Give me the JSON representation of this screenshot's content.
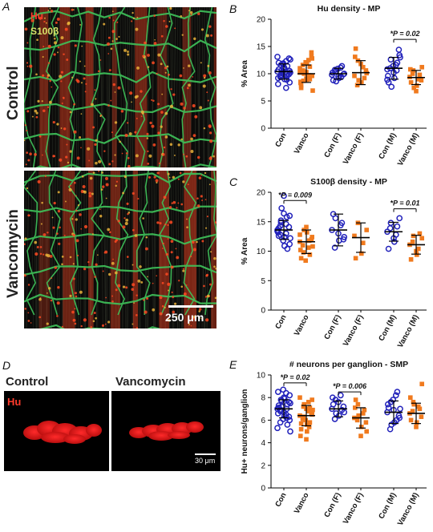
{
  "panels": {
    "A": {
      "letter": "A",
      "labels": {
        "hu": "Hu",
        "s100b": "S100β"
      },
      "rows": [
        "Control",
        "Vancomycin"
      ],
      "scale": "250 μm"
    },
    "D": {
      "letter": "D",
      "titles": [
        "Control",
        "Vancomycin"
      ],
      "label": "Hu",
      "scale": "30 μm"
    }
  },
  "colors": {
    "con": "#2222bb",
    "vanco": "#f07a1e"
  },
  "chart_data": [
    {
      "letter": "B",
      "type": "scatter",
      "title": "Hu density - MP",
      "ylabel": "% Area",
      "ylim": [
        0,
        20
      ],
      "yticks": [
        0,
        5,
        10,
        15,
        20
      ],
      "categories": [
        "Con",
        "Vanco",
        "Con (F)",
        "Vanco (F)",
        "Con (M)",
        "Vanco (M)"
      ],
      "means": [
        10.4,
        10.0,
        10.0,
        10.2,
        11.0,
        9.3
      ],
      "sd": [
        1.4,
        1.6,
        1.0,
        2.2,
        2.0,
        1.3
      ],
      "points": [
        [
          10.4,
          11.6,
          9.0,
          12.3,
          8.4,
          10.8,
          9.6,
          11.2,
          10.0,
          12.8,
          9.2,
          10.6,
          11.9,
          8.9,
          10.2,
          13.1,
          9.8,
          11.0,
          7.4,
          10.5,
          12.0,
          9.4,
          10.9,
          11.4,
          9.9,
          8.1,
          10.1,
          11.7,
          9.5,
          12.6
        ],
        [
          10.2,
          8.7,
          11.9,
          9.4,
          12.8,
          7.8,
          10.6,
          9.1,
          11.3,
          13.9,
          8.3,
          10.0,
          12.1,
          9.7,
          6.9,
          11.0,
          10.4,
          8.9,
          12.5,
          9.6,
          7.4,
          11.6,
          10.3,
          9.0,
          13.2,
          8.5
        ],
        [
          9.8,
          10.4,
          9.2,
          11.1,
          10.0,
          8.8,
          10.7,
          9.5,
          11.4,
          9.9,
          10.2,
          8.6,
          10.9,
          9.4
        ],
        [
          9.6,
          12.4,
          8.4,
          11.2,
          10.1,
          14.6,
          7.9,
          11.8,
          9.2,
          10.6,
          13.1,
          8.8
        ],
        [
          10.8,
          12.6,
          9.2,
          11.6,
          13.4,
          8.4,
          11.0,
          10.2,
          12.0,
          14.4,
          9.6,
          7.6,
          11.4,
          10.6,
          13.0,
          8.9
        ],
        [
          9.4,
          10.6,
          7.8,
          9.0,
          11.2,
          8.4,
          10.0,
          6.8,
          9.8,
          8.8,
          10.8,
          7.4
        ]
      ],
      "sig": [
        {
          "from": 4,
          "to": 5,
          "label": "*P = 0.02",
          "y": 16.3
        }
      ]
    },
    {
      "letter": "C",
      "type": "scatter",
      "title": "S100β density - MP",
      "ylabel": "% Area",
      "ylim": [
        0,
        20
      ],
      "yticks": [
        0,
        5,
        10,
        15,
        20
      ],
      "categories": [
        "Con",
        "Vanco",
        "Con (F)",
        "Vanco (F)",
        "Con (M)",
        "Vanco (M)"
      ],
      "means": [
        13.6,
        11.6,
        13.6,
        12.3,
        13.3,
        11.1
      ],
      "sd": [
        1.6,
        2.0,
        2.7,
        2.5,
        1.6,
        1.6
      ],
      "points": [
        [
          13.6,
          15.2,
          12.4,
          14.6,
          11.2,
          13.9,
          12.8,
          16.4,
          10.4,
          14.1,
          13.2,
          17.3,
          11.8,
          15.8,
          12.2,
          13.4,
          14.9,
          10.9,
          13.0,
          16.0,
          12.6,
          14.3,
          19.4
        ],
        [
          11.6,
          9.8,
          13.2,
          10.6,
          12.4,
          8.8,
          11.0,
          14.1,
          9.4,
          12.0,
          10.2,
          13.6,
          8.4,
          11.8,
          10.8,
          12.8
        ],
        [
          13.6,
          15.6,
          11.8,
          14.4,
          12.4,
          16.3,
          10.6,
          13.0,
          14.8,
          12.0
        ],
        [
          12.6,
          14.8,
          9.6,
          11.4,
          13.6,
          8.8
        ],
        [
          13.3,
          14.8,
          11.6,
          12.8,
          15.6,
          10.4,
          13.9,
          12.2,
          14.2
        ],
        [
          11.1,
          12.6,
          9.4,
          10.4,
          12.2,
          8.6,
          11.6,
          10.0,
          13.0
        ]
      ],
      "sig": [
        {
          "from": 0,
          "to": 1,
          "label": "*P = 0.009",
          "y": 18.6
        },
        {
          "from": 4,
          "to": 5,
          "label": "*P = 0.01",
          "y": 17.2
        }
      ]
    },
    {
      "letter": "E",
      "type": "scatter",
      "title": "# neurons per ganglion - SMP",
      "ylabel": "Hu+ neurons/ganglion",
      "ylim": [
        0,
        10
      ],
      "yticks": [
        0,
        2,
        4,
        6,
        8,
        10
      ],
      "categories": [
        "Con",
        "Vanco",
        "Con (F)",
        "Vanco (F)",
        "Con (M)",
        "Vanco (M)"
      ],
      "means": [
        7.0,
        6.4,
        7.0,
        6.2,
        6.7,
        6.6
      ],
      "sd": [
        0.8,
        0.9,
        0.7,
        0.9,
        1.0,
        0.9
      ],
      "points": [
        [
          7.0,
          7.8,
          6.4,
          8.4,
          6.0,
          7.3,
          6.8,
          8.0,
          5.6,
          7.6,
          6.6,
          7.2,
          8.7,
          6.2,
          7.5,
          5.3,
          6.9,
          7.9,
          6.5,
          8.2,
          7.1,
          5.8,
          6.7,
          7.4,
          6.3,
          8.5,
          7.7,
          6.1,
          7.0,
          5.0
        ],
        [
          6.4,
          7.2,
          5.6,
          6.8,
          7.8,
          5.2,
          6.2,
          7.0,
          5.8,
          6.6,
          4.6,
          7.4,
          6.0,
          5.4,
          6.9,
          8.0,
          6.3,
          5.0,
          7.6,
          6.5,
          5.7,
          6.1,
          4.3,
          7.1,
          6.7
        ],
        [
          7.0,
          7.8,
          6.4,
          8.2,
          6.7,
          7.4,
          6.1,
          7.6,
          6.9,
          7.2,
          8.0,
          6.6
        ],
        [
          6.2,
          7.4,
          5.4,
          6.6,
          5.0,
          7.8,
          6.0,
          4.6,
          6.9,
          5.8,
          7.1,
          6.4
        ],
        [
          6.7,
          7.6,
          5.8,
          8.2,
          6.2,
          7.1,
          5.2,
          6.9,
          8.5,
          6.4,
          7.4,
          5.6,
          7.8,
          6.0,
          7.0
        ],
        [
          6.6,
          7.6,
          5.8,
          7.2,
          9.2,
          6.0,
          6.8,
          5.4,
          7.0,
          6.3,
          8.0,
          7.4
        ]
      ],
      "sig": [
        {
          "from": 0,
          "to": 1,
          "label": "*P = 0.02",
          "y": 9.3
        },
        {
          "from": 2,
          "to": 3,
          "label": "*P = 0.006",
          "y": 8.5
        }
      ]
    }
  ]
}
